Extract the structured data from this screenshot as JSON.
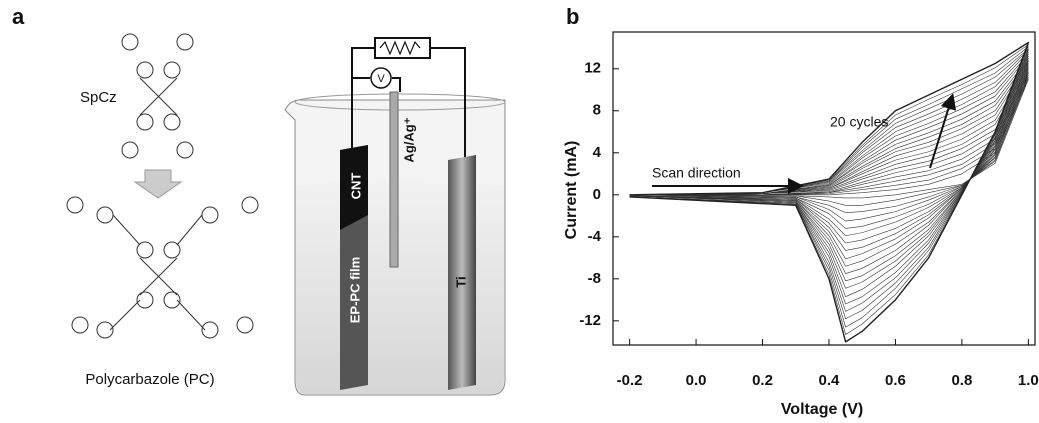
{
  "panel_a": {
    "label": "a",
    "monomer": "SpCz",
    "polymer": "Polycarbazole (PC)",
    "voltmeter": "V",
    "cnt": "CNT",
    "film": "EP-PC film",
    "reference": "Ag/Ag⁺",
    "counter": "Ti"
  },
  "chart_data": {
    "type": "line",
    "panel_label": "b",
    "xlabel": "Voltage (V)",
    "ylabel": "Current (mA)",
    "annotations": [
      "20 cycles",
      "Scan direction"
    ],
    "xlim": [
      -0.25,
      1.02
    ],
    "ylim": [
      -14.3,
      15.5
    ],
    "xticks": [
      {
        "value": -0.2,
        "label": "-0.2"
      },
      {
        "value": 0,
        "label": "0.0"
      },
      0.2,
      0.4,
      0.6,
      0.8,
      {
        "value": 1,
        "label": "1.0"
      }
    ],
    "yticks": [
      -12,
      -8,
      -4,
      0,
      4,
      8,
      12
    ],
    "x": [
      -0.2,
      0.2,
      0.4,
      0.5,
      0.6,
      0.7,
      0.8,
      0.9,
      1.0,
      0.9,
      0.8,
      0.7,
      0.6,
      0.5,
      0.45,
      0.4,
      0.3,
      -0.2
    ],
    "series": [
      {
        "color": "#333",
        "values": [
          0,
          0,
          0,
          0.2,
          0.5,
          1.0,
          2.0,
          4.0,
          11.0,
          3.0,
          1.0,
          0.5,
          0,
          -0.3,
          -0.3,
          -0.2,
          -0.1,
          0
        ]
      },
      {
        "color": "#333",
        "values": [
          0,
          0,
          0.1,
          0.5,
          0.9,
          1.4,
          2.5,
          4.4,
          11.2,
          3.2,
          0.9,
          0.2,
          -0.5,
          -1.0,
          -1.0,
          -0.6,
          -0.1,
          0
        ]
      },
      {
        "color": "#333",
        "values": [
          0,
          0,
          0.2,
          0.7,
          1.3,
          1.9,
          2.9,
          4.9,
          11.4,
          3.3,
          0.9,
          -0.2,
          -1.1,
          -1.6,
          -1.7,
          -1.0,
          -0.2,
          0
        ]
      },
      {
        "color": "#333",
        "values": [
          0,
          0,
          0.2,
          1.0,
          1.7,
          2.3,
          3.4,
          5.3,
          11.6,
          3.5,
          0.8,
          -0.5,
          -1.6,
          -2.3,
          -2.5,
          -1.4,
          -0.2,
          0
        ]
      },
      {
        "color": "#333",
        "values": [
          0,
          0,
          0.3,
          1.2,
          2.1,
          2.8,
          3.9,
          5.8,
          11.7,
          3.6,
          0.8,
          -0.9,
          -2.1,
          -3.0,
          -3.2,
          -1.8,
          -0.3,
          0
        ]
      },
      {
        "color": "#333",
        "values": [
          0,
          0.1,
          0.4,
          1.5,
          2.5,
          3.2,
          4.4,
          6.2,
          11.9,
          3.8,
          0.7,
          -1.2,
          -2.6,
          -3.6,
          -3.9,
          -2.3,
          -0.3,
          -0.1
        ]
      },
      {
        "color": "#333",
        "values": [
          0,
          0.1,
          0.5,
          1.7,
          2.9,
          3.7,
          4.8,
          6.7,
          12.1,
          3.9,
          0.7,
          -1.6,
          -3.2,
          -4.3,
          -4.6,
          -2.7,
          -0.4,
          -0.1
        ]
      },
      {
        "color": "#333",
        "values": [
          0,
          0.1,
          0.6,
          2.0,
          3.3,
          4.1,
          5.3,
          7.1,
          12.3,
          4.1,
          0.6,
          -1.9,
          -3.7,
          -5.0,
          -5.3,
          -3.1,
          -0.4,
          -0.1
        ]
      },
      {
        "color": "#333",
        "values": [
          0,
          0.1,
          0.6,
          2.2,
          3.7,
          4.6,
          5.8,
          7.6,
          12.5,
          4.3,
          0.6,
          -2.2,
          -4.2,
          -5.6,
          -6.1,
          -3.5,
          -0.5,
          -0.1
        ]
      },
      {
        "color": "#333",
        "values": [
          0,
          0.1,
          0.7,
          2.5,
          4.1,
          5.0,
          6.3,
          8.0,
          12.7,
          4.4,
          0.5,
          -2.6,
          -4.7,
          -6.3,
          -6.8,
          -3.9,
          -0.5,
          -0.1
        ]
      },
      {
        "color": "#333",
        "values": [
          0,
          0.1,
          0.8,
          2.7,
          4.4,
          5.5,
          6.7,
          8.5,
          12.8,
          4.6,
          0.5,
          -2.9,
          -5.3,
          -7.0,
          -7.5,
          -4.3,
          -0.6,
          -0.1
        ]
      },
      {
        "color": "#333",
        "values": [
          0,
          0.1,
          0.9,
          3.0,
          4.8,
          5.9,
          7.2,
          8.9,
          13.0,
          4.7,
          0.4,
          -3.3,
          -5.8,
          -7.7,
          -8.2,
          -4.7,
          -0.6,
          -0.1
        ]
      },
      {
        "color": "#333",
        "values": [
          0,
          0.1,
          0.9,
          3.2,
          5.2,
          6.4,
          7.7,
          9.4,
          13.2,
          4.9,
          0.4,
          -3.6,
          -6.3,
          -8.3,
          -8.9,
          -5.1,
          -0.7,
          -0.1
        ]
      },
      {
        "color": "#333",
        "values": [
          0,
          0.1,
          1.0,
          3.5,
          5.6,
          6.8,
          8.2,
          9.8,
          13.4,
          5.1,
          0.3,
          -3.9,
          -6.8,
          -9.0,
          -9.7,
          -5.5,
          -0.7,
          -0.1
        ]
      },
      {
        "color": "#333",
        "values": [
          0,
          0.2,
          1.1,
          3.7,
          6.0,
          7.3,
          8.6,
          10.3,
          13.6,
          5.2,
          0.3,
          -4.3,
          -7.4,
          -9.7,
          -10.4,
          -5.9,
          -0.8,
          -0.2
        ]
      },
      {
        "color": "#333",
        "values": [
          0,
          0.2,
          1.2,
          4.0,
          6.4,
          7.7,
          9.1,
          10.7,
          13.8,
          5.4,
          0.2,
          -4.6,
          -7.9,
          -10.3,
          -11.1,
          -6.4,
          -0.8,
          -0.2
        ]
      },
      {
        "color": "#333",
        "values": [
          0,
          0.2,
          1.3,
          4.2,
          6.8,
          8.2,
          9.6,
          11.2,
          13.9,
          5.5,
          0.2,
          -5.0,
          -8.4,
          -11.0,
          -11.8,
          -6.8,
          -0.9,
          -0.2
        ]
      },
      {
        "color": "#333",
        "values": [
          0,
          0.2,
          1.3,
          4.5,
          7.2,
          8.6,
          10.1,
          11.6,
          14.1,
          5.7,
          0.1,
          -5.3,
          -8.9,
          -11.7,
          -12.6,
          -7.2,
          -0.9,
          -0.2
        ]
      },
      {
        "color": "#333",
        "values": [
          0,
          0.2,
          1.4,
          4.7,
          7.6,
          9.1,
          10.5,
          12.1,
          14.3,
          5.8,
          0.1,
          -5.7,
          -9.5,
          -12.3,
          -13.3,
          -7.6,
          -1.0,
          -0.2
        ]
      },
      {
        "color": "#222",
        "values": [
          0,
          0.2,
          1.5,
          5.0,
          8.0,
          9.5,
          11.0,
          12.5,
          14.5,
          6.0,
          0,
          -6.0,
          -10.0,
          -13.0,
          -14.0,
          -8.0,
          -1.0,
          -0.2
        ]
      }
    ]
  }
}
